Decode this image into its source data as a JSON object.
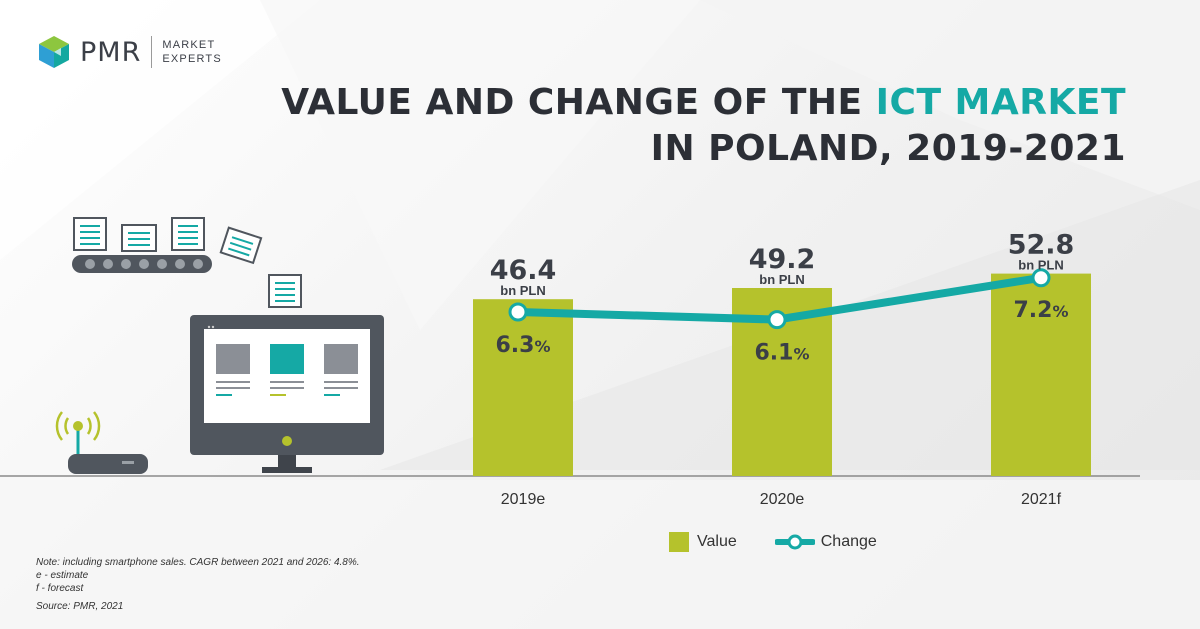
{
  "brand": {
    "name": "PMR",
    "subtitle_line1": "MARKET",
    "subtitle_line2": "EXPERTS"
  },
  "title": {
    "line1_part1": "VALUE AND CHANGE OF THE ",
    "line1_highlight": "ICT MARKET",
    "line2": "IN POLAND, 2019-2021"
  },
  "colors": {
    "bar": "#b5c22c",
    "line": "#15a9a5",
    "text_dark": "#3b3f47",
    "highlight": "#15a9a5"
  },
  "chart_data": {
    "type": "bar",
    "categories": [
      "2019e",
      "2020e",
      "2021f"
    ],
    "series": [
      {
        "name": "Value",
        "type": "bar",
        "values": [
          46.4,
          49.2,
          52.8
        ],
        "unit": "bn PLN"
      },
      {
        "name": "Change",
        "type": "line",
        "values": [
          6.3,
          6.1,
          7.2
        ],
        "unit": "%"
      }
    ],
    "value_labels": [
      "46.4",
      "49.2",
      "52.8"
    ],
    "value_unit_label": "bn PLN",
    "change_labels": [
      "6.3",
      "6.1",
      "7.2"
    ],
    "change_unit_label": "%",
    "legend": {
      "position": "bottom",
      "items": [
        "Value",
        "Change"
      ]
    }
  },
  "footnotes": {
    "note": "Note: including smartphone sales. CAGR between 2021 and 2026: 4.8%.",
    "estimate": "e - estimate",
    "forecast": "f - forecast",
    "source": "Source: PMR, 2021"
  },
  "icons": [
    "pmr-logo-icon",
    "conveyor-documents-icon",
    "monitor-icon",
    "router-icon",
    "document-icon"
  ]
}
